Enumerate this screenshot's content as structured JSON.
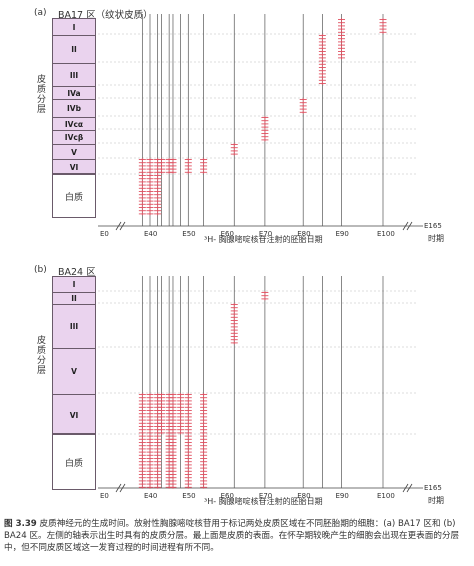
{
  "figure": {
    "panels": [
      {
        "tag": "(a)",
        "region": "BA17 区（纹状皮质）",
        "cortex_label": "皮质分层",
        "white_matter": "白质",
        "layers": [
          "I",
          "II",
          "III",
          "IVa",
          "IVb",
          "IVcα",
          "IVcβ",
          "V",
          "VI"
        ],
        "x_axis_label": "³H- 胸腺嘧啶核苷注射的胚胎日期",
        "x_end_label": "E165",
        "x_end_sub": "时期",
        "ticks": [
          "E0",
          "E40",
          "E50",
          "E60",
          "E70",
          "E80",
          "E90",
          "E100"
        ]
      },
      {
        "tag": "(b)",
        "region": "BA24 区",
        "cortex_label": "皮质分层",
        "white_matter": "白质",
        "layers": [
          "I",
          "II",
          "III",
          "V",
          "VI"
        ],
        "x_axis_label": "³H- 胸腺嘧啶核苷注射的胚胎日期",
        "x_end_label": "E165",
        "x_end_sub": "时期",
        "ticks": [
          "E0",
          "E40",
          "E50",
          "E60",
          "E70",
          "E80",
          "E90",
          "E100"
        ]
      }
    ],
    "caption": {
      "label": "图 3.39",
      "text": "皮质神经元的生成时间。放射性胸腺嘧啶核苷用于标记两处皮质区域在不同胚胎期的细胞：(a) BA17 区和 (b) BA24 区。左侧的轴表示出生时具有的皮质分层。最上面是皮质的表面。在怀孕期较晚产生的细胞会出现在更表面的分层中，但不同皮质区域这一发育过程的时间进程有所不同。"
    },
    "colors": {
      "layer_fill": "#ead3ee",
      "marker": "#e05060",
      "gridline": "#555555"
    }
  },
  "chart_data": [
    {
      "type": "scatter",
      "title": "BA17 区（纹状皮质）",
      "xlabel": "³H- 胸腺嘧啶核苷注射的胚胎日期",
      "ylabel": "皮质分层",
      "x_ticks": [
        "E0",
        "E40",
        "E50",
        "E60",
        "E70",
        "E80",
        "E90",
        "E100"
      ],
      "injection_days": [
        38,
        40,
        42,
        43,
        45,
        46,
        48,
        50,
        54,
        62,
        70,
        80,
        85,
        90,
        100
      ],
      "y_categories": [
        "I",
        "II",
        "III",
        "IVa",
        "IVb",
        "IVcα",
        "IVcβ",
        "V",
        "VI",
        "白质"
      ],
      "series": [
        {
          "x": 38,
          "y_range": [
            "VI",
            "白质"
          ]
        },
        {
          "x": 40,
          "y_range": [
            "VI",
            "白质"
          ]
        },
        {
          "x": 42,
          "y_range": [
            "VI",
            "白质"
          ]
        },
        {
          "x": 43,
          "y_range": [
            "VI",
            "VI"
          ]
        },
        {
          "x": 45,
          "y_range": [
            "VI",
            "VI"
          ]
        },
        {
          "x": 46,
          "y_range": [
            "VI",
            "VI"
          ]
        },
        {
          "x": 50,
          "y_range": [
            "VI",
            "VI"
          ]
        },
        {
          "x": 54,
          "y_range": [
            "VI",
            "VI"
          ]
        },
        {
          "x": 62,
          "y_range": [
            "V",
            "V"
          ]
        },
        {
          "x": 70,
          "y_range": [
            "IVcα",
            "IVcβ"
          ]
        },
        {
          "x": 80,
          "y_range": [
            "IVb",
            "IVb"
          ]
        },
        {
          "x": 85,
          "y_range": [
            "II",
            "III"
          ]
        },
        {
          "x": 90,
          "y_range": [
            "I",
            "II"
          ]
        },
        {
          "x": 100,
          "y_range": [
            "I",
            "I"
          ]
        }
      ]
    },
    {
      "type": "scatter",
      "title": "BA24 区",
      "xlabel": "³H- 胸腺嘧啶核苷注射的胚胎日期",
      "ylabel": "皮质分层",
      "x_ticks": [
        "E0",
        "E40",
        "E50",
        "E60",
        "E70",
        "E80",
        "E90",
        "E100"
      ],
      "injection_days": [
        38,
        40,
        42,
        43,
        45,
        46,
        48,
        50,
        54,
        62,
        70,
        80,
        85,
        90,
        100
      ],
      "y_categories": [
        "I",
        "II",
        "III",
        "V",
        "VI",
        "白质"
      ],
      "series": [
        {
          "x": 38,
          "y_range": [
            "VI",
            "白质"
          ]
        },
        {
          "x": 40,
          "y_range": [
            "VI",
            "白质"
          ]
        },
        {
          "x": 42,
          "y_range": [
            "VI",
            "白质"
          ]
        },
        {
          "x": 43,
          "y_range": [
            "VI",
            "VI"
          ]
        },
        {
          "x": 45,
          "y_range": [
            "VI",
            "白质"
          ]
        },
        {
          "x": 46,
          "y_range": [
            "VI",
            "白质"
          ]
        },
        {
          "x": 48,
          "y_range": [
            "VI",
            "VI"
          ]
        },
        {
          "x": 50,
          "y_range": [
            "VI",
            "白质"
          ]
        },
        {
          "x": 54,
          "y_range": [
            "VI",
            "白质"
          ]
        },
        {
          "x": 62,
          "y_range": [
            "III",
            "III"
          ]
        },
        {
          "x": 70,
          "y_range": [
            "II",
            "II"
          ]
        }
      ]
    }
  ]
}
